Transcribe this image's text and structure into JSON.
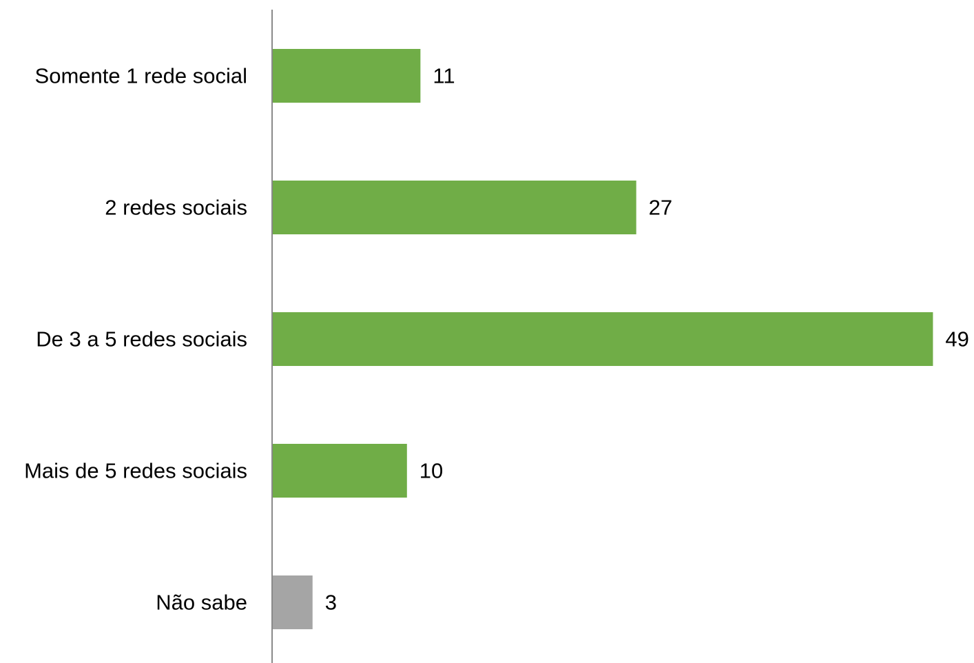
{
  "chart_data": {
    "type": "bar",
    "orientation": "horizontal",
    "title": "",
    "xlabel": "",
    "ylabel": "",
    "grid": false,
    "legend": "none",
    "categories": [
      "Somente 1 rede social",
      "2 redes sociais",
      "De 3 a 5 redes sociais",
      "Mais de 5 redes sociais",
      "Não sabe"
    ],
    "values": [
      11,
      27,
      49,
      10,
      3
    ],
    "value_labels": [
      "11",
      "27",
      "49",
      "10",
      "3"
    ],
    "bar_colors": [
      "#70ad47",
      "#70ad47",
      "#70ad47",
      "#70ad47",
      "#a5a5a5"
    ],
    "axis_color": "#898989",
    "xlim": [
      0,
      49
    ]
  }
}
